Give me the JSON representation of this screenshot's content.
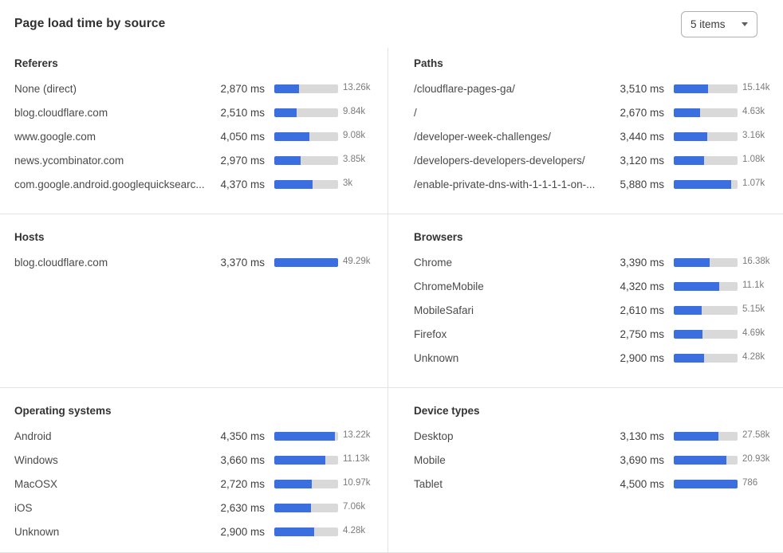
{
  "header": {
    "title": "Page load time by source",
    "items_selector": {
      "value": "5 items"
    }
  },
  "colors": {
    "bar_fill": "#3b6fe0",
    "bar_track": "#d9d9d9",
    "divider": "#e3e3e3"
  },
  "panels": [
    {
      "id": "referers",
      "title": "Referers",
      "bar_scale_ms": 7300,
      "rows": [
        {
          "label": "None (direct)",
          "ms": 2870,
          "ms_text": "2,870 ms",
          "count": "13.26k"
        },
        {
          "label": "blog.cloudflare.com",
          "ms": 2510,
          "ms_text": "2,510 ms",
          "count": "9.84k"
        },
        {
          "label": "www.google.com",
          "ms": 4050,
          "ms_text": "4,050 ms",
          "count": "9.08k"
        },
        {
          "label": "news.ycombinator.com",
          "ms": 2970,
          "ms_text": "2,970 ms",
          "count": "3.85k"
        },
        {
          "label": "com.google.android.googlequicksearc...",
          "ms": 4370,
          "ms_text": "4,370 ms",
          "count": "3k"
        }
      ]
    },
    {
      "id": "paths",
      "title": "Paths",
      "bar_scale_ms": 6500,
      "rows": [
        {
          "label": "/cloudflare-pages-ga/",
          "ms": 3510,
          "ms_text": "3,510 ms",
          "count": "15.14k"
        },
        {
          "label": "/",
          "ms": 2670,
          "ms_text": "2,670 ms",
          "count": "4.63k"
        },
        {
          "label": "/developer-week-challenges/",
          "ms": 3440,
          "ms_text": "3,440 ms",
          "count": "3.16k"
        },
        {
          "label": "/developers-developers-developers/",
          "ms": 3120,
          "ms_text": "3,120 ms",
          "count": "1.08k"
        },
        {
          "label": "/enable-private-dns-with-1-1-1-1-on-...",
          "ms": 5880,
          "ms_text": "5,880 ms",
          "count": "1.07k"
        }
      ]
    },
    {
      "id": "hosts",
      "title": "Hosts",
      "bar_scale_ms": 3370,
      "rows": [
        {
          "label": "blog.cloudflare.com",
          "ms": 3370,
          "ms_text": "3,370 ms",
          "count": "49.29k"
        }
      ]
    },
    {
      "id": "browsers",
      "title": "Browsers",
      "bar_scale_ms": 6030,
      "rows": [
        {
          "label": "Chrome",
          "ms": 3390,
          "ms_text": "3,390 ms",
          "count": "16.38k"
        },
        {
          "label": "ChromeMobile",
          "ms": 4320,
          "ms_text": "4,320 ms",
          "count": "11.1k"
        },
        {
          "label": "MobileSafari",
          "ms": 2610,
          "ms_text": "2,610 ms",
          "count": "5.15k"
        },
        {
          "label": "Firefox",
          "ms": 2750,
          "ms_text": "2,750 ms",
          "count": "4.69k"
        },
        {
          "label": "Unknown",
          "ms": 2900,
          "ms_text": "2,900 ms",
          "count": "4.28k"
        }
      ]
    },
    {
      "id": "operating-systems",
      "title": "Operating systems",
      "bar_scale_ms": 4600,
      "rows": [
        {
          "label": "Android",
          "ms": 4350,
          "ms_text": "4,350 ms",
          "count": "13.22k"
        },
        {
          "label": "Windows",
          "ms": 3660,
          "ms_text": "3,660 ms",
          "count": "11.13k"
        },
        {
          "label": "MacOSX",
          "ms": 2720,
          "ms_text": "2,720 ms",
          "count": "10.97k"
        },
        {
          "label": "iOS",
          "ms": 2630,
          "ms_text": "2,630 ms",
          "count": "7.06k"
        },
        {
          "label": "Unknown",
          "ms": 2900,
          "ms_text": "2,900 ms",
          "count": "4.28k"
        }
      ]
    },
    {
      "id": "device-types",
      "title": "Device types",
      "bar_scale_ms": 4500,
      "rows": [
        {
          "label": "Desktop",
          "ms": 3130,
          "ms_text": "3,130 ms",
          "count": "27.58k"
        },
        {
          "label": "Mobile",
          "ms": 3690,
          "ms_text": "3,690 ms",
          "count": "20.93k"
        },
        {
          "label": "Tablet",
          "ms": 4500,
          "ms_text": "4,500 ms",
          "count": "786"
        }
      ]
    }
  ]
}
